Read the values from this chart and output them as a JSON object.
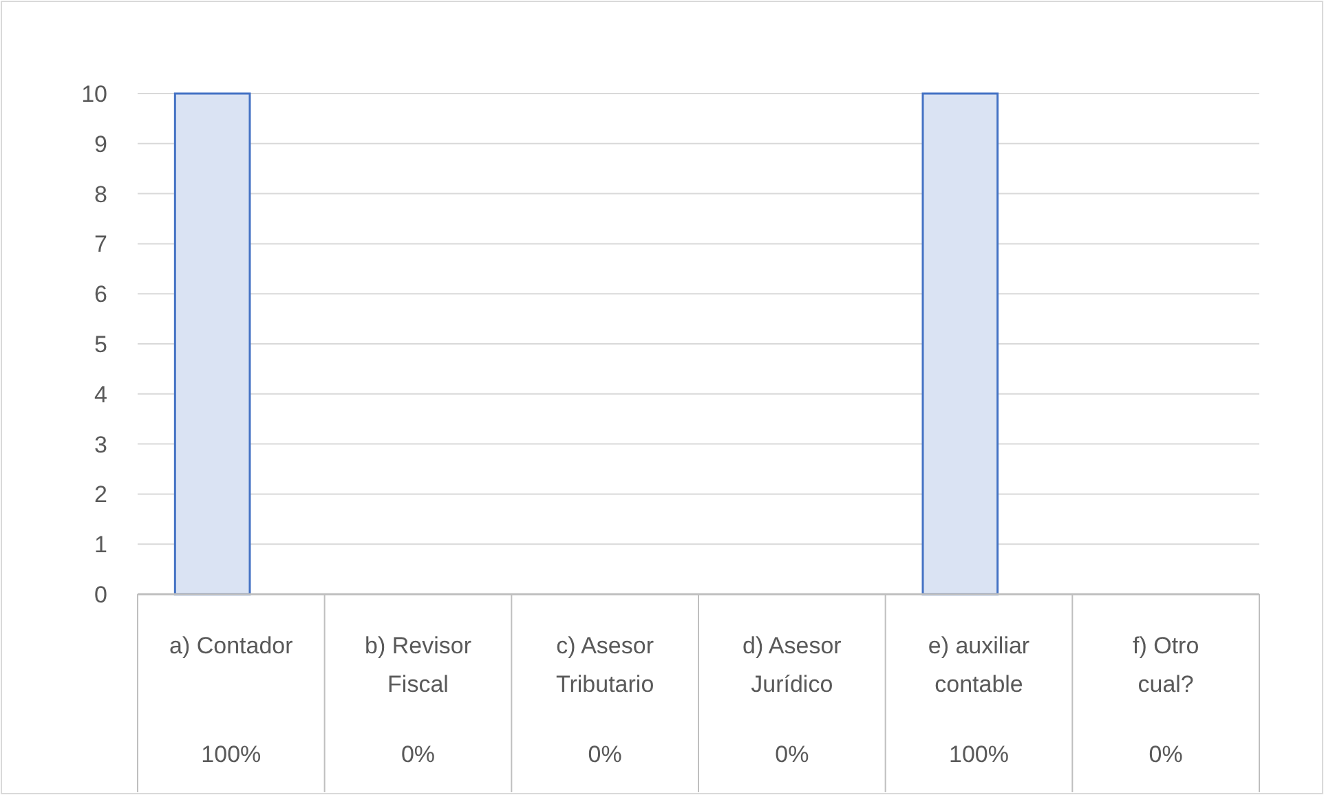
{
  "chart_data": {
    "type": "bar",
    "categories": [
      "a) Contador",
      "b) Revisor Fiscal",
      "c) Asesor Tributario",
      "d) Asesor Jurídico",
      "e) auxiliar contable",
      "f) Otro cual?"
    ],
    "values": [
      10,
      0,
      0,
      0,
      10,
      0
    ],
    "annotations": [
      "100%",
      "0%",
      "0%",
      "0%",
      "100%",
      "0%"
    ],
    "color": "#dae3f3",
    "ylim": [
      0,
      10
    ],
    "yticks": [
      0,
      1,
      2,
      3,
      4,
      5,
      6,
      7,
      8,
      9,
      10
    ],
    "grid": "y"
  }
}
